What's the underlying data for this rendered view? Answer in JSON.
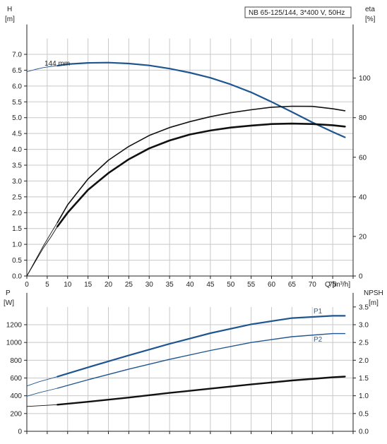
{
  "colors": {
    "blue": "#1f5690",
    "black": "#111111",
    "grid": "#c8c8c8",
    "p1_label": "#2a60a6"
  },
  "chart_data": [
    {
      "type": "line",
      "title": "NB 65-125/144, 3*400 V, 50Hz",
      "ylabel_left": [
        "H",
        "[m]"
      ],
      "ylabel_right": [
        "eta",
        "[%]"
      ],
      "xlabel": "Q [m³/h]",
      "xlim": [
        0,
        80
      ],
      "ylim_left": [
        0,
        7.5
      ],
      "ylim_right": [
        0,
        120
      ],
      "x_ticks": [
        "0",
        "5",
        "10",
        "15",
        "20",
        "25",
        "30",
        "35",
        "40",
        "45",
        "50",
        "55",
        "60",
        "65",
        "70",
        "75"
      ],
      "y_left_ticks": [
        "0.0",
        "0.5",
        "1.0",
        "1.5",
        "2.0",
        "2.5",
        "3.0",
        "3.5",
        "4.0",
        "4.5",
        "5.0",
        "5.5",
        "6.0",
        "6.5",
        "7.0"
      ],
      "y_right_ticks": [
        "0",
        "20",
        "40",
        "60",
        "80",
        "100"
      ],
      "annotation": "144 mm",
      "grid": true,
      "series": [
        {
          "name": "H",
          "axis": "left",
          "color": "#1f5690",
          "thin_x": [
            0,
            2,
            4,
            6,
            7.5
          ],
          "thin_y": [
            6.45,
            6.52,
            6.58,
            6.62,
            6.64
          ],
          "x": [
            7.5,
            10,
            15,
            20,
            25,
            30,
            35,
            40,
            45,
            50,
            55,
            60,
            65,
            70,
            75,
            78
          ],
          "y": [
            6.64,
            6.69,
            6.73,
            6.74,
            6.71,
            6.65,
            6.55,
            6.42,
            6.26,
            6.05,
            5.8,
            5.5,
            5.18,
            4.85,
            4.55,
            4.38
          ]
        },
        {
          "name": "eta",
          "axis": "right",
          "color": "#111111",
          "thin_x": [
            0,
            2,
            4,
            6,
            7.5
          ],
          "thin_y": [
            0,
            7,
            14,
            20,
            25
          ],
          "x": [
            7.5,
            10,
            15,
            20,
            25,
            30,
            35,
            40,
            45,
            50,
            55,
            60,
            65,
            70,
            75,
            78
          ],
          "y": [
            25,
            32,
            43.5,
            52,
            59,
            64.5,
            68.5,
            71.5,
            73.5,
            75,
            76,
            76.8,
            77,
            76.8,
            76.2,
            75.5
          ]
        },
        {
          "name": "eta-upper",
          "axis": "right",
          "color": "#111111",
          "thin_x": [
            0,
            2,
            4,
            6,
            7.5
          ],
          "thin_y": [
            0,
            7.5,
            15,
            22,
            27
          ],
          "x": [
            7.5,
            10,
            15,
            20,
            25,
            30,
            35,
            40,
            45,
            50,
            55,
            60,
            65,
            70,
            75,
            78
          ],
          "y": [
            27,
            36,
            49,
            58.5,
            65.5,
            71,
            75,
            78,
            80.5,
            82.5,
            84,
            85.3,
            85.8,
            85.7,
            84.5,
            83.5
          ]
        }
      ]
    },
    {
      "type": "line",
      "ylabel_left": [
        "P",
        "[W]"
      ],
      "ylabel_right": [
        "NPSH",
        "[m]"
      ],
      "xlim": [
        0,
        80
      ],
      "ylim_left": [
        0,
        1500
      ],
      "ylim_right": [
        0,
        3.75
      ],
      "y_left_ticks": [
        "0",
        "200",
        "400",
        "600",
        "800",
        "1000",
        "1200"
      ],
      "y_right_ticks": [
        "0.0",
        "0.5",
        "1.0",
        "1.5",
        "2.0",
        "2.5",
        "3.0",
        "3.5"
      ],
      "grid": true,
      "series": [
        {
          "name": "P1",
          "axis": "left",
          "color": "#1f5690",
          "thin_x": [
            0,
            3,
            7.5
          ],
          "thin_y": [
            510,
            558,
            615
          ],
          "x": [
            7.5,
            15,
            25,
            35,
            45,
            55,
            65,
            75,
            78
          ],
          "y": [
            615,
            720,
            855,
            985,
            1105,
            1205,
            1275,
            1300,
            1300
          ]
        },
        {
          "name": "P2",
          "axis": "left",
          "color": "#1f5690",
          "thin_x": [
            0,
            3,
            7.5
          ],
          "thin_y": [
            395,
            435,
            485
          ],
          "x": [
            7.5,
            15,
            25,
            35,
            45,
            55,
            65,
            75,
            78
          ],
          "y": [
            485,
            580,
            700,
            810,
            910,
            1000,
            1065,
            1100,
            1100
          ]
        },
        {
          "name": "NPSH",
          "axis": "right",
          "color": "#111111",
          "thin_x": [
            0,
            3,
            7.5
          ],
          "thin_y": [
            0.7,
            0.72,
            0.75
          ],
          "x": [
            7.5,
            15,
            25,
            35,
            45,
            55,
            65,
            75,
            78
          ],
          "y": [
            0.75,
            0.83,
            0.95,
            1.08,
            1.2,
            1.32,
            1.43,
            1.52,
            1.54
          ]
        }
      ]
    }
  ]
}
